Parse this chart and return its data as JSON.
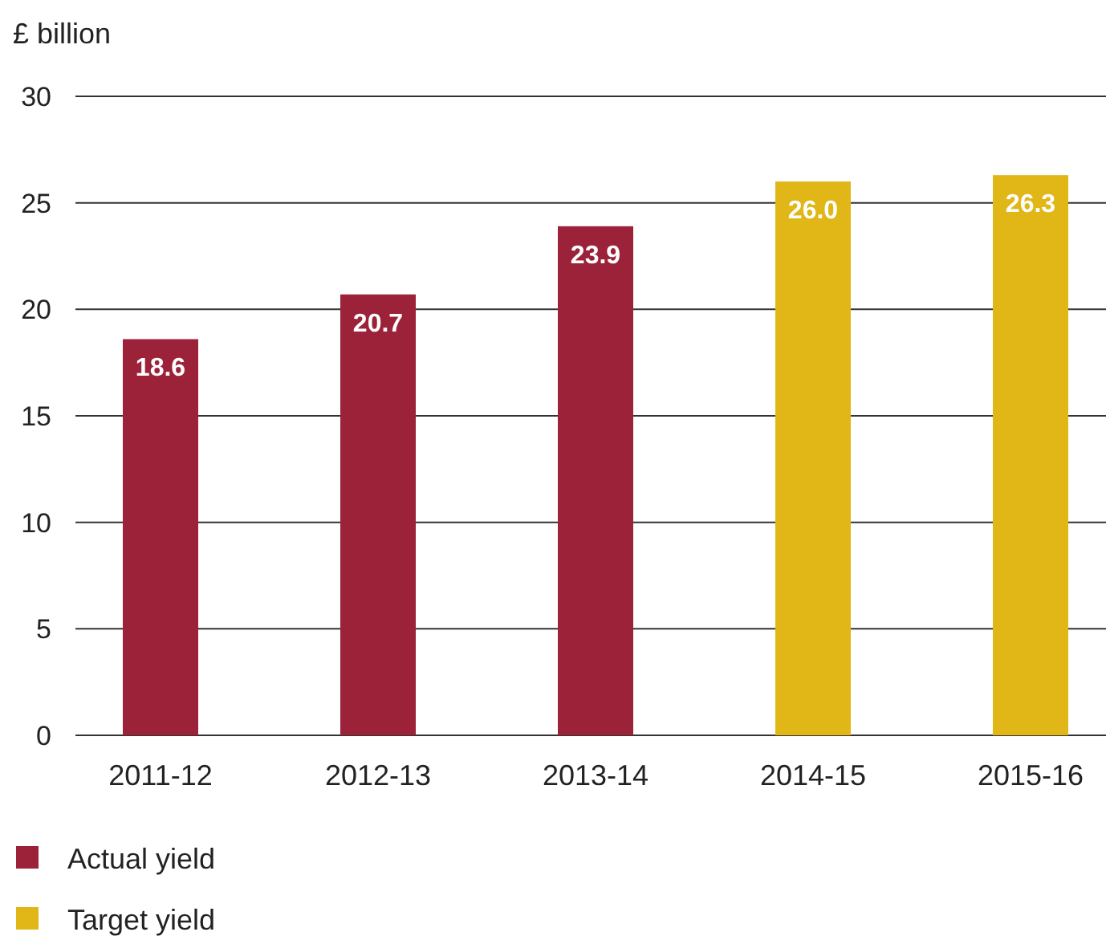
{
  "chart_data": {
    "type": "bar",
    "ylabel": "£ billion",
    "categories": [
      "2011-12",
      "2012-13",
      "2013-14",
      "2014-15",
      "2015-16"
    ],
    "series": [
      {
        "name": "Actual yield",
        "color": "#9b2238",
        "values": [
          18.6,
          20.7,
          23.9,
          null,
          null
        ],
        "value_labels": [
          "18.6",
          "20.7",
          "23.9",
          null,
          null
        ]
      },
      {
        "name": "Target yield",
        "color": "#e0b716",
        "values": [
          null,
          null,
          null,
          26.0,
          26.3
        ],
        "value_labels": [
          null,
          null,
          null,
          "26.0",
          "26.3"
        ]
      }
    ],
    "ylim": [
      0,
      30
    ],
    "yticks": [
      0,
      5,
      10,
      15,
      20,
      25,
      30
    ],
    "grid": "y",
    "legend": "bottom"
  }
}
